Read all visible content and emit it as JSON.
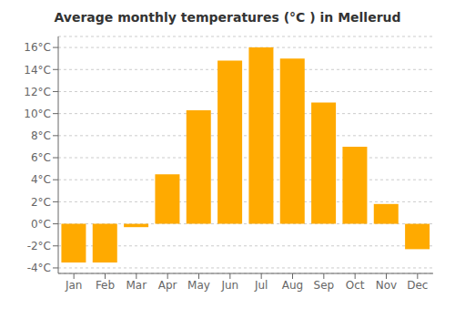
{
  "chart_data": {
    "type": "bar",
    "title": "Average monthly temperatures (°C ) in Mellerud",
    "categories": [
      "Jan",
      "Feb",
      "Mar",
      "Apr",
      "May",
      "Jun",
      "Jul",
      "Aug",
      "Sep",
      "Oct",
      "Nov",
      "Dec"
    ],
    "values": [
      -3.5,
      -3.5,
      -0.3,
      4.5,
      10.3,
      14.8,
      16.0,
      15.0,
      11.0,
      7.0,
      1.8,
      -2.3
    ],
    "color": "#FFAA00",
    "ylim": [
      -4.5,
      17
    ],
    "yticks": [
      {
        "value": -4,
        "label": "-4°C"
      },
      {
        "value": -2,
        "label": "-2°C"
      },
      {
        "value": 0,
        "label": "0°C"
      },
      {
        "value": 2,
        "label": "2°C"
      },
      {
        "value": 4,
        "label": "4°C"
      },
      {
        "value": 6,
        "label": "6°C"
      },
      {
        "value": 8,
        "label": "8°C"
      },
      {
        "value": 10,
        "label": "10°C"
      },
      {
        "value": 12,
        "label": "12°C"
      },
      {
        "value": 14,
        "label": "14°C"
      },
      {
        "value": 16,
        "label": "16°C"
      }
    ],
    "grid": true
  }
}
